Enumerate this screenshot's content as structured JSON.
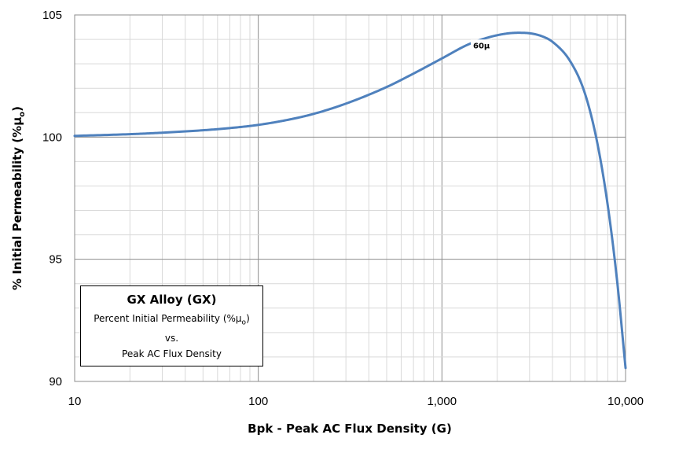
{
  "chart_data": {
    "type": "line",
    "title": "GX Alloy  (GX)",
    "subtitle_lines": [
      "Percent Initial Permeability (%μo)",
      "vs.",
      "Peak AC Flux Density"
    ],
    "xlabel": "Bpk - Peak AC Flux Density  (G)",
    "ylabel": "% Initial Permeability (%μo)",
    "xscale": "log",
    "xlim": [
      10,
      10000
    ],
    "ylim": [
      90,
      105
    ],
    "x_ticks": [
      10,
      100,
      1000,
      10000
    ],
    "x_tick_labels": [
      "10",
      "100",
      "1,000",
      "10,000"
    ],
    "y_ticks": [
      90,
      95,
      100,
      105
    ],
    "y_tick_labels": [
      "90",
      "95",
      "100",
      "105"
    ],
    "grid": true,
    "legend_placement": "bottom-left",
    "series": [
      {
        "name": "60µ",
        "color": "#4F81BD",
        "x": [
          10,
          20,
          30,
          50,
          70,
          100,
          150,
          200,
          300,
          500,
          700,
          1000,
          1400,
          2000,
          2600,
          3000,
          3500,
          4000,
          5000,
          6000,
          7000,
          8000,
          9000,
          10000
        ],
        "y": [
          100.05,
          100.12,
          100.18,
          100.28,
          100.37,
          100.5,
          100.73,
          100.95,
          101.37,
          102.05,
          102.6,
          103.22,
          103.8,
          104.17,
          104.27,
          104.25,
          104.13,
          103.9,
          103.1,
          101.8,
          99.8,
          97.2,
          94.1,
          90.55
        ]
      }
    ]
  },
  "legend_box": {
    "title": "GX Alloy  (GX)",
    "line1": "Percent Initial Permeability (%μ",
    "line1_sub": "o",
    "line1_end": ")",
    "line2": "vs.",
    "line3": "Peak AC Flux Density"
  },
  "axis_titles": {
    "x": "Bpk - Peak AC Flux Density  (G)",
    "y_main": "% Initial Permeability (%μ",
    "y_sub": "o",
    "y_end": ")"
  },
  "series_label": "60µ"
}
